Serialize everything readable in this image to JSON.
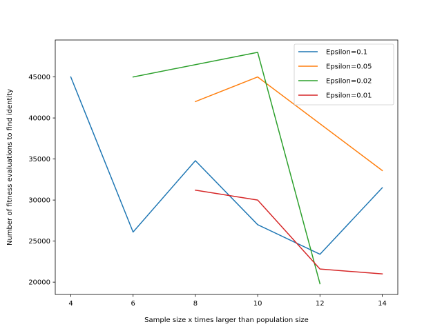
{
  "chart_data": {
    "type": "line",
    "title": "",
    "xlabel": "Sample size x times larger than population size",
    "ylabel": "Number of fitness evaluations to find identity",
    "xlim": [
      3.5,
      14.5
    ],
    "ylim": [
      18500,
      49500
    ],
    "xticks": [
      4,
      6,
      8,
      10,
      12,
      14
    ],
    "yticks": [
      20000,
      25000,
      30000,
      35000,
      40000,
      45000
    ],
    "grid": false,
    "legend_position": "top-right",
    "series": [
      {
        "name": "Epsilon=0.1",
        "color": "#1f77b4",
        "x": [
          4,
          6,
          8,
          10,
          12,
          14
        ],
        "values": [
          45000,
          26100,
          34800,
          27000,
          23400,
          31500
        ]
      },
      {
        "name": "Epsilon=0.05",
        "color": "#ff7f0e",
        "x": [
          8,
          10,
          14
        ],
        "values": [
          42000,
          45000,
          33600
        ]
      },
      {
        "name": "Epsilon=0.02",
        "color": "#2ca02c",
        "x": [
          6,
          10,
          12
        ],
        "values": [
          45000,
          48000,
          19800
        ]
      },
      {
        "name": "Epsilon=0.01",
        "color": "#d62728",
        "x": [
          8,
          10,
          12,
          14
        ],
        "values": [
          31200,
          30000,
          21600,
          21000
        ]
      }
    ]
  }
}
